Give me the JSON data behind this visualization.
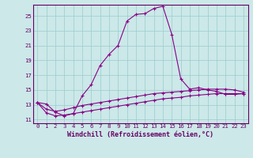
{
  "xlabel": "Windchill (Refroidissement éolien,°C)",
  "ylabel": "",
  "bg_color": "#cce8e8",
  "line_color": "#880088",
  "xlim": [
    -0.5,
    23.5
  ],
  "ylim": [
    10.5,
    26.5
  ],
  "xticks": [
    0,
    1,
    2,
    3,
    4,
    5,
    6,
    7,
    8,
    9,
    10,
    11,
    12,
    13,
    14,
    15,
    16,
    17,
    18,
    19,
    20,
    21,
    22,
    23
  ],
  "yticks": [
    11,
    13,
    15,
    17,
    19,
    21,
    23,
    25
  ],
  "line1_x": [
    0,
    1,
    2,
    3,
    4,
    5,
    6,
    7,
    8,
    9,
    10,
    11,
    12,
    13,
    14,
    15,
    16,
    17,
    18,
    19,
    20,
    21,
    22,
    23
  ],
  "line1_y": [
    13.3,
    13.1,
    12.0,
    11.5,
    11.8,
    14.2,
    15.7,
    18.3,
    19.8,
    21.0,
    24.3,
    25.2,
    25.3,
    26.0,
    26.3,
    22.5,
    16.5,
    15.1,
    15.3,
    15.0,
    14.8,
    14.4,
    14.4,
    14.5
  ],
  "line2_x": [
    0,
    1,
    2,
    3,
    4,
    5,
    6,
    7,
    8,
    9,
    10,
    11,
    12,
    13,
    14,
    15,
    16,
    17,
    18,
    19,
    20,
    21,
    22,
    23
  ],
  "line2_y": [
    13.3,
    12.4,
    12.1,
    12.3,
    12.6,
    12.9,
    13.1,
    13.3,
    13.5,
    13.7,
    13.9,
    14.1,
    14.3,
    14.5,
    14.6,
    14.7,
    14.8,
    14.9,
    15.0,
    15.1,
    15.1,
    15.1,
    15.0,
    14.7
  ],
  "line3_x": [
    0,
    1,
    2,
    3,
    4,
    5,
    6,
    7,
    8,
    9,
    10,
    11,
    12,
    13,
    14,
    15,
    16,
    17,
    18,
    19,
    20,
    21,
    22,
    23
  ],
  "line3_y": [
    13.3,
    11.9,
    11.5,
    11.6,
    11.8,
    12.0,
    12.2,
    12.4,
    12.6,
    12.8,
    13.0,
    13.2,
    13.4,
    13.6,
    13.8,
    13.9,
    14.0,
    14.2,
    14.3,
    14.4,
    14.5,
    14.5,
    14.5,
    14.5
  ],
  "grid_color": "#99cccc",
  "tick_fontsize": 5.2,
  "label_fontsize": 6.0,
  "marker": "D",
  "markersize": 2.0,
  "linewidth": 0.8
}
